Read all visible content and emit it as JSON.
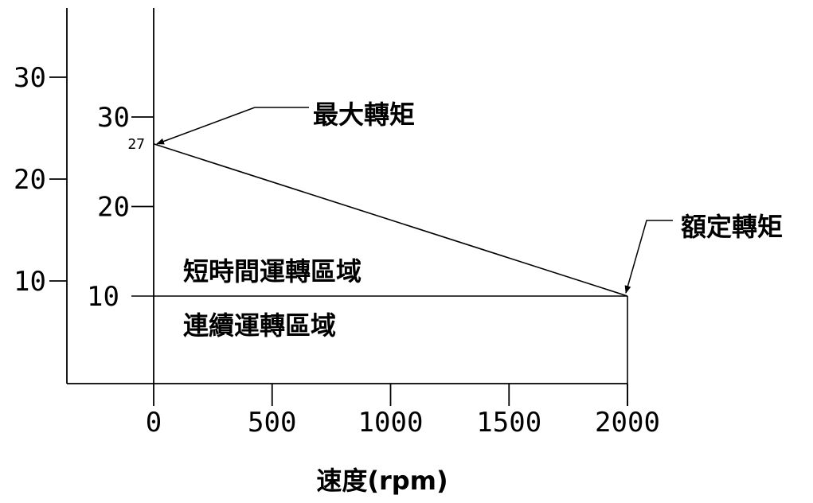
{
  "chart_data": {
    "type": "line",
    "xlabel": "速度(rpm)",
    "ylabel": "",
    "xlim": [
      -375,
      2000
    ],
    "ylim": [
      0,
      36
    ],
    "x_ticks": [
      "0",
      "500",
      "1000",
      "1500",
      "2000"
    ],
    "x_tick_values": [
      0,
      500,
      1000,
      1500,
      2000
    ],
    "outer_y_ticks": [
      "30",
      "20",
      "10"
    ],
    "outer_y_tick_values": [
      30,
      20,
      10
    ],
    "inner_y_ticks": [
      "30",
      "20",
      "10"
    ],
    "inner_y_tick_values": [
      30,
      20,
      10
    ],
    "inner_extra_label": "27",
    "inner_extra_value": 27,
    "series": [
      {
        "x": [
          0,
          2000
        ],
        "y": [
          27,
          10
        ]
      },
      {
        "x": [
          0,
          2000
        ],
        "y": [
          10,
          10
        ]
      }
    ],
    "annotations": {
      "max_torque": "最大轉矩",
      "rated_torque": "額定轉矩",
      "short_time_region": "短時間運轉區域",
      "continuous_region": "連續運轉區域"
    }
  }
}
